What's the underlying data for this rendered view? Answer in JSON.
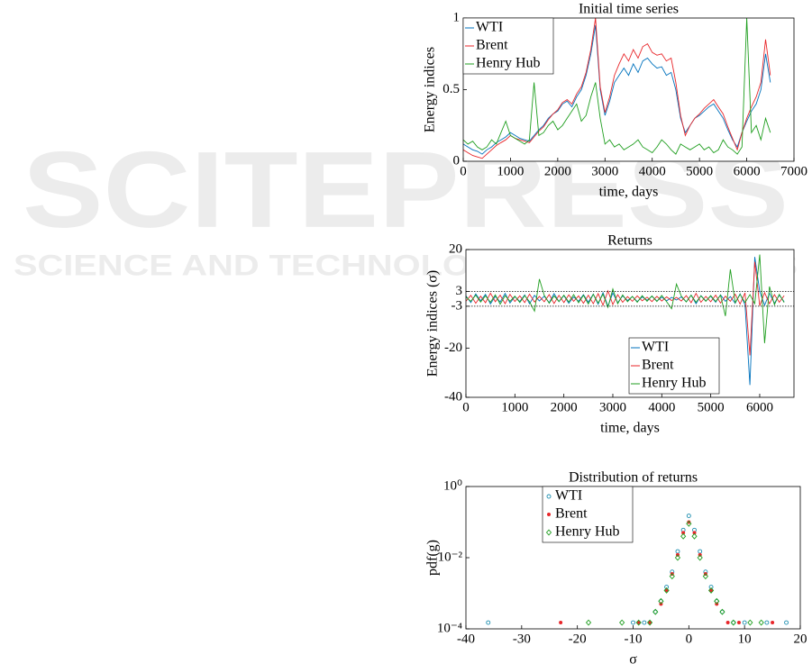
{
  "watermark": {
    "title": "SCITEPRESS",
    "subtitle": "SCIENCE AND TECHNOLOGY PUBLICATIONS"
  },
  "chart_data": [
    {
      "type": "line",
      "title": "Initial time series",
      "x_label": "time, days",
      "y_label": "Energy indices",
      "xlim": [
        0,
        7000
      ],
      "xticks": [
        0,
        1000,
        2000,
        3000,
        4000,
        5000,
        6000,
        7000
      ],
      "ylim": [
        0,
        1
      ],
      "yticks": [
        0,
        0.5,
        1
      ],
      "legend": "upper left",
      "x": [
        0,
        100,
        200,
        300,
        400,
        500,
        600,
        700,
        800,
        900,
        1000,
        1100,
        1200,
        1300,
        1400,
        1500,
        1600,
        1700,
        1800,
        1900,
        2000,
        2100,
        2200,
        2300,
        2400,
        2500,
        2600,
        2700,
        2800,
        2900,
        3000,
        3100,
        3200,
        3300,
        3400,
        3500,
        3600,
        3700,
        3800,
        3900,
        4000,
        4100,
        4200,
        4300,
        4400,
        4500,
        4600,
        4700,
        4800,
        4900,
        5000,
        5100,
        5200,
        5300,
        5400,
        5500,
        5600,
        5700,
        5800,
        5900,
        6000,
        6100,
        6200,
        6300,
        6400,
        6500
      ],
      "series": [
        {
          "name": "WTI",
          "color": "#0072bd",
          "values": [
            0.12,
            0.1,
            0.08,
            0.07,
            0.05,
            0.08,
            0.1,
            0.13,
            0.15,
            0.17,
            0.2,
            0.18,
            0.16,
            0.15,
            0.14,
            0.18,
            0.22,
            0.25,
            0.3,
            0.33,
            0.35,
            0.4,
            0.42,
            0.38,
            0.45,
            0.5,
            0.6,
            0.75,
            0.95,
            0.5,
            0.32,
            0.42,
            0.55,
            0.6,
            0.65,
            0.6,
            0.68,
            0.62,
            0.7,
            0.72,
            0.68,
            0.65,
            0.66,
            0.6,
            0.62,
            0.5,
            0.3,
            0.2,
            0.25,
            0.3,
            0.32,
            0.35,
            0.38,
            0.4,
            0.35,
            0.3,
            0.22,
            0.15,
            0.1,
            0.2,
            0.28,
            0.35,
            0.4,
            0.5,
            0.75,
            0.55
          ]
        },
        {
          "name": "Brent",
          "color": "#e8262a",
          "values": [
            0.08,
            0.06,
            0.04,
            0.03,
            0.02,
            0.05,
            0.08,
            0.11,
            0.13,
            0.15,
            0.18,
            0.16,
            0.15,
            0.14,
            0.13,
            0.17,
            0.21,
            0.24,
            0.29,
            0.33,
            0.36,
            0.41,
            0.43,
            0.4,
            0.47,
            0.52,
            0.62,
            0.78,
            1.0,
            0.52,
            0.34,
            0.45,
            0.6,
            0.68,
            0.75,
            0.7,
            0.78,
            0.72,
            0.8,
            0.82,
            0.76,
            0.74,
            0.75,
            0.7,
            0.72,
            0.55,
            0.32,
            0.18,
            0.25,
            0.3,
            0.33,
            0.37,
            0.4,
            0.43,
            0.38,
            0.33,
            0.24,
            0.16,
            0.08,
            0.2,
            0.3,
            0.38,
            0.45,
            0.55,
            0.85,
            0.6
          ]
        },
        {
          "name": "Henry Hub",
          "color": "#1f9e1f",
          "values": [
            0.15,
            0.12,
            0.14,
            0.1,
            0.08,
            0.1,
            0.15,
            0.12,
            0.2,
            0.28,
            0.18,
            0.16,
            0.14,
            0.12,
            0.15,
            0.55,
            0.18,
            0.2,
            0.25,
            0.28,
            0.22,
            0.25,
            0.3,
            0.35,
            0.4,
            0.28,
            0.32,
            0.45,
            0.55,
            0.3,
            0.12,
            0.15,
            0.1,
            0.12,
            0.08,
            0.1,
            0.12,
            0.15,
            0.1,
            0.08,
            0.06,
            0.1,
            0.15,
            0.12,
            0.08,
            0.05,
            0.12,
            0.1,
            0.08,
            0.1,
            0.12,
            0.08,
            0.1,
            0.06,
            0.08,
            0.15,
            0.1,
            0.08,
            0.05,
            0.1,
            1.0,
            0.2,
            0.25,
            0.15,
            0.3,
            0.2
          ]
        }
      ]
    },
    {
      "type": "line",
      "title": "Returns",
      "x_label": "time, days",
      "y_label": "Energy indices (σ)",
      "xlim": [
        0,
        6700
      ],
      "xticks": [
        0,
        1000,
        2000,
        3000,
        4000,
        5000,
        6000
      ],
      "ylim": [
        -40,
        20
      ],
      "yticks": [
        -40,
        -20,
        -3,
        3,
        20
      ],
      "hlines": [
        3,
        -3
      ],
      "legend": "lower right",
      "x": [
        0,
        100,
        200,
        300,
        400,
        500,
        600,
        700,
        800,
        900,
        1000,
        1100,
        1200,
        1300,
        1400,
        1500,
        1600,
        1700,
        1800,
        1900,
        2000,
        2100,
        2200,
        2300,
        2400,
        2500,
        2600,
        2700,
        2800,
        2900,
        3000,
        3100,
        3200,
        3300,
        3400,
        3500,
        3600,
        3700,
        3800,
        3900,
        4000,
        4100,
        4200,
        4300,
        4400,
        4500,
        4600,
        4700,
        4800,
        4900,
        5000,
        5100,
        5200,
        5300,
        5400,
        5500,
        5600,
        5700,
        5800,
        5900,
        6000,
        6100,
        6200,
        6300,
        6400,
        6500
      ],
      "series": [
        {
          "name": "WTI",
          "color": "#0072bd",
          "values": [
            1.2,
            -1.5,
            2.0,
            -0.8,
            1.8,
            -2.1,
            1.0,
            -1.3,
            2.2,
            -1.7,
            0.9,
            -1.1,
            1.6,
            -2.0,
            1.4,
            -0.9,
            1.1,
            -1.6,
            2.1,
            -1.2,
            1.3,
            -1.8,
            0.8,
            -1.0,
            1.7,
            -1.4,
            1.9,
            -2.2,
            2.5,
            -3.0,
            2.4,
            -1.6,
            1.2,
            -0.7,
            0.9,
            -1.1,
            0.8,
            -0.6,
            1.0,
            -0.9,
            0.7,
            -0.8,
            0.6,
            -0.5,
            0.8,
            -1.2,
            1.5,
            -2.0,
            1.3,
            -0.9,
            1.1,
            -1.4,
            1.6,
            -1.0,
            0.9,
            -1.8,
            2.0,
            -2.5,
            -35,
            17,
            3.0,
            -2.6,
            2.2,
            -1.8,
            1.5,
            -1.2
          ]
        },
        {
          "name": "Brent",
          "color": "#e8262a",
          "values": [
            -1.0,
            1.4,
            -1.8,
            1.1,
            -1.6,
            2.3,
            -1.2,
            1.5,
            -2.0,
            1.8,
            -1.1,
            1.2,
            -1.5,
            1.9,
            -1.3,
            1.0,
            -1.2,
            1.7,
            -1.9,
            1.4,
            -1.5,
            1.6,
            -1.0,
            1.2,
            -1.8,
            1.5,
            -2.0,
            2.1,
            -2.6,
            3.2,
            -2.3,
            1.7,
            -1.4,
            0.9,
            -1.0,
            1.2,
            -0.8,
            0.7,
            -1.1,
            1.0,
            -0.9,
            0.8,
            -0.7,
            0.6,
            -0.9,
            1.3,
            -1.6,
            2.2,
            -1.4,
            1.0,
            -1.2,
            1.5,
            -1.7,
            1.1,
            -1.0,
            1.9,
            -2.1,
            2.4,
            -23,
            15,
            -2.8,
            2.5,
            -2.0,
            1.7,
            -1.4,
            1.3
          ]
        },
        {
          "name": "Henry Hub",
          "color": "#1f9e1f",
          "values": [
            0.8,
            -1.0,
            1.5,
            -1.3,
            1.2,
            -1.4,
            1.6,
            -2.2,
            1.3,
            -1.0,
            1.1,
            -1.5,
            1.3,
            -1.2,
            -5,
            8,
            1.4,
            -1.8,
            1.2,
            -1.1,
            1.5,
            -1.3,
            1.7,
            -1.6,
            1.4,
            -2.1,
            1.8,
            -1.7,
            1.9,
            -3.5,
            4.0,
            -2.0,
            1.6,
            -1.2,
            1.0,
            -1.4,
            1.3,
            -1.0,
            1.2,
            -1.1,
            1.4,
            -1.2,
            -4,
            6,
            1.1,
            -1.3,
            1.5,
            -1.4,
            1.2,
            -1.0,
            1.3,
            -1.1,
            1.5,
            -7,
            12,
            -1.6,
            1.8,
            -1.5,
            1.7,
            -2.0,
            18,
            -18,
            5,
            -2.4,
            1.8,
            -1.5
          ]
        }
      ]
    },
    {
      "type": "scatter",
      "title": "Distribution of returns",
      "x_label": "σ",
      "y_label": "pdf(g)",
      "xlim": [
        -40,
        20
      ],
      "xticks": [
        -40,
        -30,
        -20,
        -10,
        0,
        10,
        20
      ],
      "ylim": [
        0.0001,
        1
      ],
      "ylog": true,
      "yticks": [
        {
          "value": 0.0001,
          "label": "10⁻⁴"
        },
        {
          "value": 0.01,
          "label": "10⁻²"
        },
        {
          "value": 1,
          "label": "10⁰"
        }
      ],
      "legend": "upper left",
      "series": [
        {
          "name": "WTI",
          "color": "#1f8fb0",
          "marker": "circle",
          "x": [
            -36,
            -10,
            -8,
            -6,
            -5,
            -4,
            -3,
            -2,
            -1,
            0,
            1,
            2,
            3,
            4,
            5,
            6,
            8,
            10,
            14,
            17.5
          ],
          "values": [
            0.00015,
            0.00015,
            0.00015,
            0.0003,
            0.0006,
            0.0015,
            0.004,
            0.015,
            0.06,
            0.15,
            0.06,
            0.015,
            0.004,
            0.0015,
            0.0006,
            0.0003,
            0.00015,
            0.00015,
            0.00015,
            0.00015
          ]
        },
        {
          "name": "Brent",
          "color": "#e8262a",
          "marker": "dot",
          "x": [
            -23,
            -9,
            -7,
            -5,
            -4,
            -3,
            -2,
            -1,
            0,
            1,
            2,
            3,
            4,
            5,
            7,
            9,
            15
          ],
          "values": [
            0.00015,
            0.00015,
            0.00015,
            0.0005,
            0.0012,
            0.0035,
            0.012,
            0.05,
            0.1,
            0.05,
            0.012,
            0.0035,
            0.0012,
            0.0005,
            0.00015,
            0.00015,
            0.00015
          ]
        },
        {
          "name": "Henry Hub",
          "color": "#1f9e1f",
          "marker": "diamond",
          "x": [
            -18,
            -12,
            -9,
            -7,
            -6,
            -5,
            -4,
            -3,
            -2,
            -1,
            0,
            1,
            2,
            3,
            4,
            5,
            6,
            8,
            11,
            13
          ],
          "values": [
            0.00015,
            0.00015,
            0.00015,
            0.00015,
            0.0003,
            0.0006,
            0.0012,
            0.003,
            0.01,
            0.04,
            0.09,
            0.04,
            0.01,
            0.003,
            0.0012,
            0.0006,
            0.0003,
            0.00015,
            0.00015,
            0.00015
          ]
        }
      ]
    }
  ]
}
